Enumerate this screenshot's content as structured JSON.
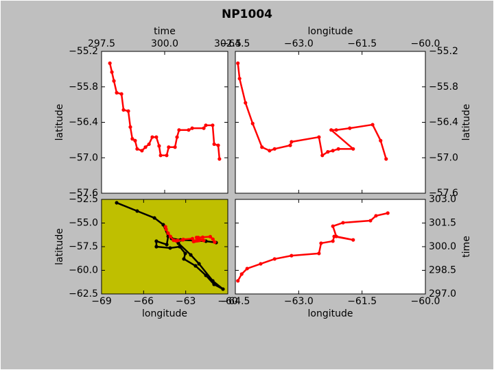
{
  "title": "NP1004",
  "chart_data": [
    {
      "type": "line",
      "xlabel": "time",
      "ylabel": "latitude",
      "x_side": "top",
      "y_side": "left",
      "background": "#ffffff",
      "xlim": [
        297.5,
        302.5
      ],
      "xticks": [
        297.5,
        {
          "value": 300,
          "label": "300.0"
        },
        302.5
      ],
      "ylim": [
        -57.6,
        -55.2
      ],
      "yticks": [
        {
          "value": -55.2,
          "label": "−55.2"
        },
        {
          "value": -55.8,
          "label": "−55.8"
        },
        {
          "value": -56.4,
          "label": "−56.4"
        },
        {
          "value": -57.0,
          "label": "−57.0"
        },
        {
          "value": -57.6,
          "label": "−57.6"
        }
      ],
      "series": [
        {
          "color": "#ff0000",
          "x": [
            297.83,
            297.91,
            297.99,
            298.1,
            298.29,
            298.37,
            298.56,
            298.64,
            298.72,
            298.83,
            298.91,
            299.1,
            299.24,
            299.38,
            299.51,
            299.67,
            299.78,
            299.84,
            300.08,
            300.16,
            300.41,
            300.49,
            300.57,
            300.95,
            301.09,
            301.55,
            301.63,
            301.9,
            301.96,
            302.12,
            302.17
          ],
          "values": [
            -55.4,
            -55.55,
            -55.7,
            -55.9,
            -55.92,
            -56.19,
            -56.21,
            -56.48,
            -56.68,
            -56.71,
            -56.85,
            -56.88,
            -56.82,
            -56.77,
            -56.65,
            -56.65,
            -56.8,
            -56.96,
            -56.96,
            -56.82,
            -56.82,
            -56.65,
            -56.53,
            -56.53,
            -56.5,
            -56.5,
            -56.45,
            -56.45,
            -56.77,
            -56.79,
            -57.02
          ]
        }
      ]
    },
    {
      "type": "line",
      "xlabel": "longitude",
      "ylabel": "latitude",
      "x_side": "top",
      "y_side": "right",
      "background": "#ffffff",
      "xlim": [
        -64.5,
        -60.0
      ],
      "xticks": [
        {
          "value": -64.5,
          "label": "−64.5"
        },
        {
          "value": -63.0,
          "label": "−63.0"
        },
        {
          "value": -61.5,
          "label": "−61.5"
        },
        {
          "value": -60.0,
          "label": "−60.0"
        }
      ],
      "ylim": [
        -57.6,
        -55.2
      ],
      "yticks": [
        {
          "value": -55.2,
          "label": "−55.2"
        },
        {
          "value": -55.8,
          "label": "−55.8"
        },
        {
          "value": -56.4,
          "label": "−56.4"
        },
        {
          "value": -57.0,
          "label": "−57.0"
        },
        {
          "value": -57.6,
          "label": "−57.6"
        }
      ],
      "series": [
        {
          "color": "#ff0000",
          "x": [
            -64.44,
            -64.4,
            -64.26,
            -64.09,
            -63.87,
            -63.69,
            -63.57,
            -63.2,
            -63.17,
            -62.52,
            -62.44,
            -62.31,
            -62.19,
            -62.06,
            -61.71,
            -62.23,
            -62.11,
            -61.79,
            -61.25,
            -61.06,
            -60.93
          ],
          "values": [
            -55.4,
            -55.66,
            -56.07,
            -56.42,
            -56.82,
            -56.88,
            -56.85,
            -56.79,
            -56.73,
            -56.65,
            -56.96,
            -56.9,
            -56.88,
            -56.85,
            -56.85,
            -56.53,
            -56.53,
            -56.5,
            -56.44,
            -56.71,
            -57.02
          ]
        }
      ]
    },
    {
      "type": "line",
      "xlabel": "longitude",
      "ylabel": "latitude",
      "x_side": "bottom",
      "y_side": "left",
      "background": "#bfbf00",
      "xlim": [
        -69,
        -60
      ],
      "xticks": [
        {
          "value": -69,
          "label": "−69"
        },
        {
          "value": -66,
          "label": "−66"
        },
        {
          "value": -63,
          "label": "−63"
        },
        {
          "value": -60,
          "label": "−60"
        }
      ],
      "ylim": [
        -62.5,
        -52.5
      ],
      "yticks": [
        {
          "value": -52.5,
          "label": "−52.5"
        },
        {
          "value": -55.0,
          "label": "−55.0"
        },
        {
          "value": -57.5,
          "label": "−57.5"
        },
        {
          "value": -60.0,
          "label": "−60.0"
        },
        {
          "value": -62.5,
          "label": "−62.5"
        }
      ],
      "series": [
        {
          "color": "#000000",
          "x": [
            -67.92,
            -66.46,
            -65.23,
            -64.6,
            -64.25,
            -64.35,
            -65.09,
            -65.09,
            -64.11,
            -63.43,
            -63.03,
            -63.13,
            -62.3,
            -61.56,
            -60.98,
            -60.34,
            -61.07,
            -62.05,
            -62.64,
            -63.52,
            -64.01,
            -63.37,
            -61.56,
            -60.83
          ],
          "values": [
            -52.86,
            -53.73,
            -54.46,
            -55.18,
            -56.41,
            -57.28,
            -56.92,
            -57.5,
            -57.64,
            -57.5,
            -58.22,
            -58.8,
            -59.53,
            -60.54,
            -61.49,
            -61.99,
            -61.12,
            -59.31,
            -58.37,
            -57.14,
            -56.63,
            -56.78,
            -56.92,
            -57.07
          ]
        },
        {
          "color": "#ff0000",
          "x": [
            -64.44,
            -64.4,
            -64.26,
            -64.09,
            -63.87,
            -63.69,
            -63.57,
            -63.2,
            -63.17,
            -62.52,
            -62.44,
            -62.31,
            -62.19,
            -62.06,
            -61.71,
            -62.23,
            -62.11,
            -61.79,
            -61.25,
            -61.06,
            -60.93
          ],
          "values": [
            -55.4,
            -55.66,
            -56.07,
            -56.42,
            -56.82,
            -56.88,
            -56.85,
            -56.79,
            -56.73,
            -56.65,
            -56.96,
            -56.9,
            -56.88,
            -56.85,
            -56.85,
            -56.53,
            -56.53,
            -56.5,
            -56.44,
            -56.71,
            -57.02
          ]
        }
      ]
    },
    {
      "type": "line",
      "xlabel": "longitude",
      "ylabel": "time",
      "x_side": "bottom",
      "y_side": "right",
      "background": "#ffffff",
      "xlim": [
        -64.5,
        -60.0
      ],
      "xticks": [
        {
          "value": -64.5,
          "label": "−64.5"
        },
        {
          "value": -63.0,
          "label": "−63.0"
        },
        {
          "value": -61.5,
          "label": "−61.5"
        },
        {
          "value": -60.0,
          "label": "−60.0"
        }
      ],
      "ylim": [
        297,
        303
      ],
      "yticks": [
        {
          "value": 297,
          "label": "297.0"
        },
        298.5,
        {
          "value": 300,
          "label": "300.0"
        },
        301.5,
        {
          "value": 303,
          "label": "303.0"
        }
      ],
      "series": [
        {
          "color": "#ff0000",
          "x": [
            -64.44,
            -64.35,
            -64.22,
            -63.9,
            -63.57,
            -63.17,
            -62.52,
            -62.47,
            -62.19,
            -62.16,
            -61.71,
            -62.11,
            -62.19,
            -61.95,
            -61.3,
            -61.17,
            -60.89
          ],
          "values": [
            297.83,
            298.26,
            298.61,
            298.91,
            299.22,
            299.43,
            299.57,
            300.22,
            300.35,
            300.65,
            300.43,
            300.65,
            301.3,
            301.52,
            301.65,
            301.96,
            302.13
          ]
        }
      ]
    }
  ]
}
